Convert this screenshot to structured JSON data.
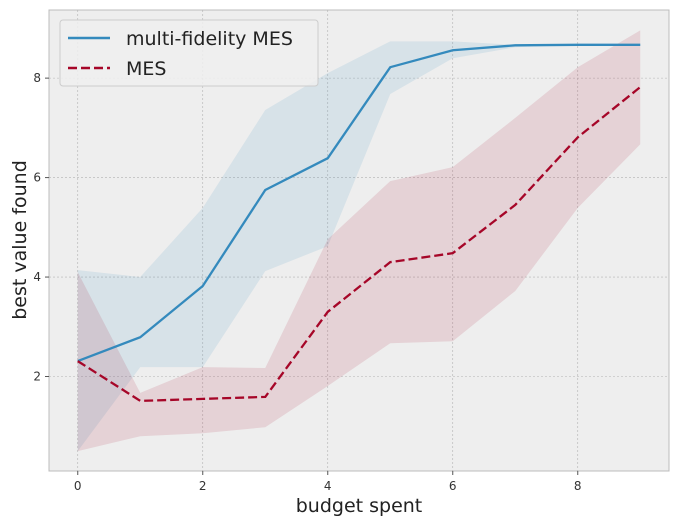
{
  "chart_data": {
    "type": "line",
    "title": "",
    "xlabel": "budget spent",
    "ylabel": "best value found",
    "xlim": [
      -0.46,
      9.46
    ],
    "ylim": [
      0.1,
      9.37
    ],
    "xticks": [
      0,
      2,
      4,
      6,
      8
    ],
    "yticks": [
      2,
      4,
      6,
      8
    ],
    "grid": true,
    "legend_position": "top-left",
    "x": [
      0,
      1,
      2,
      3,
      4,
      5,
      6,
      7,
      8,
      9
    ],
    "series": [
      {
        "name": "multi-fidelity MES",
        "color": "#348ABD",
        "style": "solid",
        "values": [
          2.31,
          2.79,
          3.82,
          5.75,
          6.39,
          8.22,
          8.56,
          8.66,
          8.67,
          8.67
        ],
        "upper": [
          4.14,
          4.0,
          5.39,
          7.36,
          8.1,
          8.74,
          8.74,
          8.67,
          8.67,
          8.67
        ],
        "lower": [
          0.5,
          2.19,
          2.19,
          4.12,
          4.62,
          7.68,
          8.4,
          8.62,
          8.67,
          8.67
        ]
      },
      {
        "name": "MES",
        "color": "#A60628",
        "style": "dashed",
        "values": [
          2.31,
          1.51,
          1.55,
          1.59,
          3.3,
          4.3,
          4.48,
          5.45,
          6.81,
          7.82
        ],
        "upper": [
          4.1,
          1.67,
          2.19,
          2.17,
          4.76,
          5.93,
          6.21,
          7.2,
          8.22,
          8.96
        ],
        "lower": [
          0.5,
          0.8,
          0.86,
          0.98,
          1.81,
          2.67,
          2.71,
          3.72,
          5.39,
          6.67
        ]
      }
    ]
  }
}
